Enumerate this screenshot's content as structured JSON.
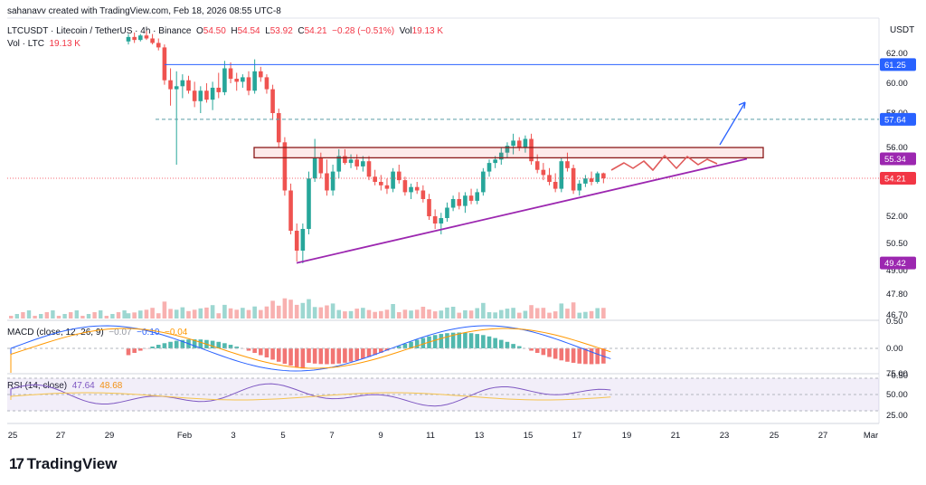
{
  "creator_line": "sahanavv created with TradingView.com, Feb 18, 2026 08:55 UTC-8",
  "currency": "USDT",
  "legend": {
    "symbol": "LTCUSDT · Litecoin / TetherUS · 4h · Binance",
    "o_label": "O",
    "o_value": "54.50",
    "h_label": "H",
    "h_value": "54.54",
    "l_label": "L",
    "l_value": "53.92",
    "c_label": "C",
    "c_value": "54.21",
    "change": "−0.28 (−0.51%)",
    "vol_label": "Vol",
    "vol_value": "19.13 K",
    "vol_row_label": "Vol · LTC",
    "vol_row_value": "19.13 K"
  },
  "macd_legend": {
    "label": "MACD (close, 12, 26, 9)",
    "hist": "−0.07",
    "macd": "−0.10",
    "signal": "−0.04"
  },
  "rsi_legend": {
    "label": "RSI (14, close)",
    "rsi": "47.64",
    "ma": "48.68"
  },
  "brand": "TradingView",
  "colors": {
    "up": "#26a69a",
    "down": "#ef5350",
    "hline": "#2962ff",
    "dashed_line": "#5b9ea6",
    "resistance": "#ef5350",
    "trendline": "#9c27b0",
    "projection": "#e05a5a",
    "arrow": "#2962ff",
    "macd": "#2962ff",
    "signal": "#ff9800",
    "rsi": "#7e57c2",
    "rsi_ma": "#f5c34d"
  },
  "chart_data": {
    "type": "candlestick",
    "timeframe": "4h",
    "price_axis": {
      "ticks": [
        "62.00",
        "60.00",
        "58.00",
        "56.00",
        "52.00",
        "50.50",
        "49.00",
        "47.80",
        "46.70"
      ],
      "ylim": [
        46.7,
        63.3
      ]
    },
    "x_ticks": [
      "25",
      "27",
      "29",
      "Feb",
      "3",
      "5",
      "7",
      "9",
      "11",
      "13",
      "15",
      "17",
      "19",
      "21",
      "23",
      "25",
      "27",
      "Mar"
    ],
    "price_tags": [
      {
        "label": "61.25",
        "color": "#2962ff"
      },
      {
        "label": "57.64",
        "color": "#2962ff"
      },
      {
        "label": "55.34",
        "color": "#9c27b0"
      },
      {
        "label": "54.21",
        "color": "#f23645"
      },
      {
        "label": "49.42",
        "color": "#9c27b0"
      }
    ],
    "levels": {
      "horizontal_line": 61.25,
      "dashed_line": 57.64,
      "last_price": 54.21,
      "resistance_zone": [
        55.4,
        56.0
      ],
      "ascending_trendline": {
        "from": [
          "Feb 5",
          49.42
        ],
        "to": [
          "Feb 23",
          55.34
        ]
      }
    },
    "macd_axis": {
      "ticks": [
        "0.50",
        "0.00",
        "−0.50"
      ],
      "ylim": [
        -0.7,
        0.6
      ]
    },
    "rsi_axis": {
      "ticks": [
        "75.00",
        "50.00",
        "25.00"
      ],
      "ylim": [
        18,
        82
      ],
      "band": [
        30,
        70
      ]
    },
    "candles": [
      {
        "x": "29",
        "o": 62.8,
        "h": 63.3,
        "l": 62.6,
        "c": 63.1
      },
      {
        "x": "29",
        "o": 63.1,
        "h": 63.4,
        "l": 62.7,
        "c": 62.9
      },
      {
        "x": "29",
        "o": 62.9,
        "h": 63.3,
        "l": 62.8,
        "c": 63.2
      },
      {
        "x": "30",
        "o": 63.2,
        "h": 63.5,
        "l": 62.9,
        "c": 63.0
      },
      {
        "x": "30",
        "o": 63.0,
        "h": 63.3,
        "l": 62.6,
        "c": 62.7
      },
      {
        "x": "30",
        "o": 62.7,
        "h": 63.0,
        "l": 62.2,
        "c": 62.4
      },
      {
        "x": "31",
        "o": 62.4,
        "h": 62.6,
        "l": 59.9,
        "c": 60.2
      },
      {
        "x": "31",
        "o": 60.2,
        "h": 61.0,
        "l": 58.5,
        "c": 59.6
      },
      {
        "x": "31",
        "o": 59.6,
        "h": 60.8,
        "l": 55.0,
        "c": 59.8
      },
      {
        "x": "Feb",
        "o": 59.8,
        "h": 60.6,
        "l": 59.0,
        "c": 60.2
      },
      {
        "x": "Feb",
        "o": 60.2,
        "h": 60.5,
        "l": 59.3,
        "c": 59.5
      },
      {
        "x": "Feb",
        "o": 59.5,
        "h": 60.1,
        "l": 58.4,
        "c": 58.8
      },
      {
        "x": "Feb",
        "o": 58.8,
        "h": 59.8,
        "l": 58.0,
        "c": 59.5
      },
      {
        "x": "2",
        "o": 59.5,
        "h": 60.0,
        "l": 58.7,
        "c": 58.9
      },
      {
        "x": "2",
        "o": 58.9,
        "h": 60.1,
        "l": 58.2,
        "c": 59.7
      },
      {
        "x": "2",
        "o": 59.7,
        "h": 60.7,
        "l": 59.0,
        "c": 59.4
      },
      {
        "x": "2",
        "o": 59.4,
        "h": 61.5,
        "l": 59.2,
        "c": 61.0
      },
      {
        "x": "3",
        "o": 61.0,
        "h": 61.4,
        "l": 60.0,
        "c": 60.3
      },
      {
        "x": "3",
        "o": 60.3,
        "h": 60.7,
        "l": 59.5,
        "c": 60.1
      },
      {
        "x": "3",
        "o": 60.1,
        "h": 60.6,
        "l": 59.7,
        "c": 60.4
      },
      {
        "x": "3",
        "o": 60.4,
        "h": 60.8,
        "l": 59.2,
        "c": 59.5
      },
      {
        "x": "4",
        "o": 59.5,
        "h": 61.6,
        "l": 59.3,
        "c": 60.8
      },
      {
        "x": "4",
        "o": 60.8,
        "h": 61.1,
        "l": 60.1,
        "c": 60.4
      },
      {
        "x": "4",
        "o": 60.4,
        "h": 60.6,
        "l": 59.3,
        "c": 59.6
      },
      {
        "x": "4",
        "o": 59.6,
        "h": 59.9,
        "l": 57.6,
        "c": 58.0
      },
      {
        "x": "4",
        "o": 58.0,
        "h": 58.3,
        "l": 56.0,
        "c": 56.3
      },
      {
        "x": "5",
        "o": 56.3,
        "h": 56.6,
        "l": 53.2,
        "c": 53.5
      },
      {
        "x": "5",
        "o": 53.5,
        "h": 53.9,
        "l": 51.0,
        "c": 51.2
      },
      {
        "x": "5",
        "o": 51.2,
        "h": 51.6,
        "l": 49.5,
        "c": 50.1
      },
      {
        "x": "5",
        "o": 50.1,
        "h": 51.6,
        "l": 49.4,
        "c": 51.3
      },
      {
        "x": "6",
        "o": 51.3,
        "h": 54.6,
        "l": 51.0,
        "c": 54.2
      },
      {
        "x": "6",
        "o": 54.2,
        "h": 56.5,
        "l": 54.0,
        "c": 55.4
      },
      {
        "x": "6",
        "o": 55.4,
        "h": 55.7,
        "l": 54.2,
        "c": 54.5
      },
      {
        "x": "6",
        "o": 54.5,
        "h": 55.3,
        "l": 53.2,
        "c": 53.5
      },
      {
        "x": "7",
        "o": 53.5,
        "h": 55.0,
        "l": 53.2,
        "c": 54.6
      },
      {
        "x": "7",
        "o": 54.6,
        "h": 55.9,
        "l": 54.2,
        "c": 55.5
      },
      {
        "x": "7",
        "o": 55.5,
        "h": 55.9,
        "l": 55.0,
        "c": 55.1
      },
      {
        "x": "7",
        "o": 55.1,
        "h": 55.6,
        "l": 54.8,
        "c": 55.3
      },
      {
        "x": "8",
        "o": 55.3,
        "h": 55.6,
        "l": 54.7,
        "c": 54.9
      },
      {
        "x": "8",
        "o": 54.9,
        "h": 55.5,
        "l": 54.6,
        "c": 55.2
      },
      {
        "x": "8",
        "o": 55.2,
        "h": 55.5,
        "l": 54.1,
        "c": 54.3
      },
      {
        "x": "8",
        "o": 54.3,
        "h": 54.7,
        "l": 53.8,
        "c": 54.0
      },
      {
        "x": "9",
        "o": 54.0,
        "h": 54.4,
        "l": 53.5,
        "c": 53.8
      },
      {
        "x": "9",
        "o": 53.8,
        "h": 54.2,
        "l": 53.3,
        "c": 53.6
      },
      {
        "x": "9",
        "o": 53.6,
        "h": 54.8,
        "l": 53.4,
        "c": 54.6
      },
      {
        "x": "9",
        "o": 54.6,
        "h": 55.0,
        "l": 53.9,
        "c": 54.1
      },
      {
        "x": "10",
        "o": 54.1,
        "h": 54.3,
        "l": 53.2,
        "c": 53.4
      },
      {
        "x": "10",
        "o": 53.4,
        "h": 53.9,
        "l": 53.0,
        "c": 53.7
      },
      {
        "x": "10",
        "o": 53.7,
        "h": 54.0,
        "l": 53.3,
        "c": 53.5
      },
      {
        "x": "10",
        "o": 53.5,
        "h": 53.8,
        "l": 52.8,
        "c": 53.0
      },
      {
        "x": "11",
        "o": 53.0,
        "h": 53.3,
        "l": 51.8,
        "c": 52.0
      },
      {
        "x": "11",
        "o": 52.0,
        "h": 52.4,
        "l": 51.3,
        "c": 51.6
      },
      {
        "x": "11",
        "o": 51.6,
        "h": 52.2,
        "l": 51.0,
        "c": 51.9
      },
      {
        "x": "11",
        "o": 51.9,
        "h": 52.8,
        "l": 51.7,
        "c": 52.5
      },
      {
        "x": "12",
        "o": 52.5,
        "h": 53.2,
        "l": 52.3,
        "c": 53.0
      },
      {
        "x": "12",
        "o": 53.0,
        "h": 53.4,
        "l": 52.4,
        "c": 52.6
      },
      {
        "x": "12",
        "o": 52.6,
        "h": 53.4,
        "l": 52.2,
        "c": 53.2
      },
      {
        "x": "12",
        "o": 53.2,
        "h": 53.6,
        "l": 52.7,
        "c": 52.9
      },
      {
        "x": "13",
        "o": 52.9,
        "h": 53.6,
        "l": 52.7,
        "c": 53.4
      },
      {
        "x": "13",
        "o": 53.4,
        "h": 54.8,
        "l": 53.2,
        "c": 54.6
      },
      {
        "x": "13",
        "o": 54.6,
        "h": 55.3,
        "l": 54.3,
        "c": 55.1
      },
      {
        "x": "13",
        "o": 55.1,
        "h": 55.5,
        "l": 54.8,
        "c": 55.3
      },
      {
        "x": "14",
        "o": 55.3,
        "h": 56.0,
        "l": 55.0,
        "c": 55.7
      },
      {
        "x": "14",
        "o": 55.7,
        "h": 56.3,
        "l": 55.4,
        "c": 56.1
      },
      {
        "x": "14",
        "o": 56.1,
        "h": 56.8,
        "l": 55.6,
        "c": 56.4
      },
      {
        "x": "14",
        "o": 56.4,
        "h": 56.6,
        "l": 55.8,
        "c": 56.0
      },
      {
        "x": "15",
        "o": 56.0,
        "h": 56.7,
        "l": 55.7,
        "c": 56.5
      },
      {
        "x": "15",
        "o": 56.5,
        "h": 56.8,
        "l": 55.0,
        "c": 55.2
      },
      {
        "x": "15",
        "o": 55.2,
        "h": 55.6,
        "l": 54.5,
        "c": 54.7
      },
      {
        "x": "15",
        "o": 54.7,
        "h": 55.1,
        "l": 54.1,
        "c": 54.4
      },
      {
        "x": "16",
        "o": 54.4,
        "h": 54.8,
        "l": 53.8,
        "c": 54.0
      },
      {
        "x": "16",
        "o": 54.0,
        "h": 54.5,
        "l": 53.4,
        "c": 53.6
      },
      {
        "x": "16",
        "o": 53.6,
        "h": 55.4,
        "l": 53.4,
        "c": 55.2
      },
      {
        "x": "16",
        "o": 55.2,
        "h": 55.7,
        "l": 54.6,
        "c": 54.8
      },
      {
        "x": "17",
        "o": 54.8,
        "h": 55.0,
        "l": 53.3,
        "c": 53.5
      },
      {
        "x": "17",
        "o": 53.5,
        "h": 54.1,
        "l": 53.2,
        "c": 53.9
      },
      {
        "x": "17",
        "o": 53.9,
        "h": 54.4,
        "l": 53.7,
        "c": 54.2
      },
      {
        "x": "17",
        "o": 54.2,
        "h": 54.6,
        "l": 53.8,
        "c": 54.0
      },
      {
        "x": "18",
        "o": 54.0,
        "h": 54.6,
        "l": 53.9,
        "c": 54.5
      },
      {
        "x": "18",
        "o": 54.5,
        "h": 54.54,
        "l": 53.92,
        "c": 54.21
      }
    ]
  }
}
